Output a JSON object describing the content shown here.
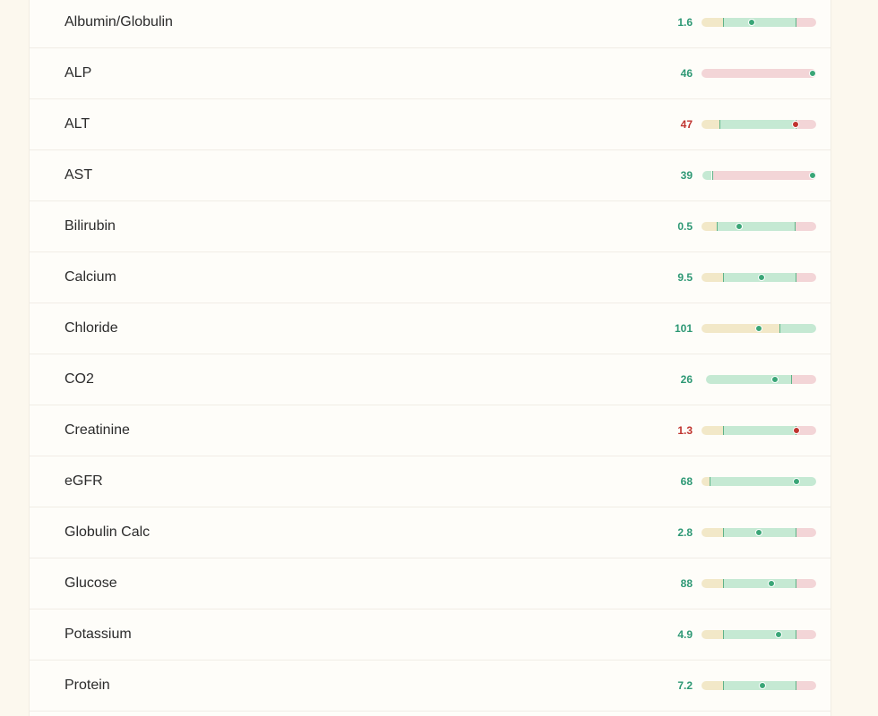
{
  "colors": {
    "ok_value": "#2d9874",
    "bad_value": "#c0342f",
    "low_zone": "#f2e8c8",
    "normal_zone": "#c5e9d3",
    "high_zone": "#f3d5d7"
  },
  "labs": [
    {
      "name": "Albumin/Globulin",
      "value": "1.6",
      "status": "ok",
      "zones": [
        [
          "low",
          0,
          0.19
        ],
        [
          "normal",
          0.19,
          0.82
        ],
        [
          "high",
          0.82,
          1
        ]
      ],
      "marker": 0.44
    },
    {
      "name": "ALP",
      "value": "46",
      "status": "ok",
      "zones": [
        [
          "high",
          0,
          1
        ]
      ],
      "marker": 0.97
    },
    {
      "name": "ALT",
      "value": "47",
      "status": "bad",
      "zones": [
        [
          "low",
          0,
          0.16
        ],
        [
          "normal",
          0.16,
          0.82
        ],
        [
          "high",
          0.82,
          1
        ]
      ],
      "marker": 0.82
    },
    {
      "name": "AST",
      "value": "39",
      "status": "ok",
      "zones": [
        [
          "normal",
          0.01,
          0.09
        ],
        [
          "high",
          0.09,
          1
        ]
      ],
      "marker": 0.97
    },
    {
      "name": "Bilirubin",
      "value": "0.5",
      "status": "ok",
      "zones": [
        [
          "low",
          0,
          0.13
        ],
        [
          "normal",
          0.13,
          0.81
        ],
        [
          "high",
          0.81,
          1
        ]
      ],
      "marker": 0.33
    },
    {
      "name": "Calcium",
      "value": "9.5",
      "status": "ok",
      "zones": [
        [
          "low",
          0,
          0.19
        ],
        [
          "normal",
          0.19,
          0.82
        ],
        [
          "high",
          0.82,
          1
        ]
      ],
      "marker": 0.52
    },
    {
      "name": "Chloride",
      "value": "101",
      "status": "ok",
      "zones": [
        [
          "low",
          0,
          0.68
        ],
        [
          "normal",
          0.68,
          1
        ]
      ],
      "marker": 0.5
    },
    {
      "name": "CO2",
      "value": "26",
      "status": "ok",
      "zones": [
        [
          "normal",
          0.04,
          0.78
        ],
        [
          "high",
          0.78,
          1
        ]
      ],
      "marker": 0.64
    },
    {
      "name": "Creatinine",
      "value": "1.3",
      "status": "bad",
      "zones": [
        [
          "low",
          0,
          0.19
        ],
        [
          "normal",
          0.19,
          0.82
        ],
        [
          "high",
          0.82,
          1
        ]
      ],
      "marker": 0.83
    },
    {
      "name": "eGFR",
      "value": "68",
      "status": "ok",
      "zones": [
        [
          "low",
          0,
          0.07
        ],
        [
          "normal",
          0.07,
          1
        ]
      ],
      "marker": 0.83
    },
    {
      "name": "Globulin Calc",
      "value": "2.8",
      "status": "ok",
      "zones": [
        [
          "low",
          0,
          0.19
        ],
        [
          "normal",
          0.19,
          0.82
        ],
        [
          "high",
          0.82,
          1
        ]
      ],
      "marker": 0.5
    },
    {
      "name": "Glucose",
      "value": "88",
      "status": "ok",
      "zones": [
        [
          "low",
          0,
          0.19
        ],
        [
          "normal",
          0.19,
          0.82
        ],
        [
          "high",
          0.82,
          1
        ]
      ],
      "marker": 0.61
    },
    {
      "name": "Potassium",
      "value": "4.9",
      "status": "ok",
      "zones": [
        [
          "low",
          0,
          0.19
        ],
        [
          "normal",
          0.19,
          0.82
        ],
        [
          "high",
          0.82,
          1
        ]
      ],
      "marker": 0.67
    },
    {
      "name": "Protein",
      "value": "7.2",
      "status": "ok",
      "zones": [
        [
          "low",
          0,
          0.19
        ],
        [
          "normal",
          0.19,
          0.82
        ],
        [
          "high",
          0.82,
          1
        ]
      ],
      "marker": 0.53
    }
  ]
}
